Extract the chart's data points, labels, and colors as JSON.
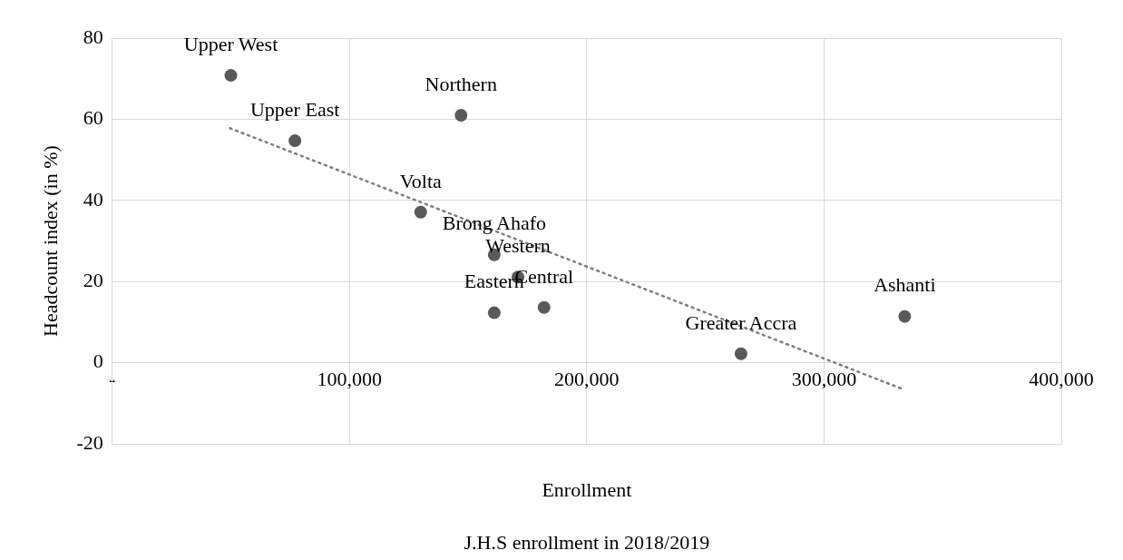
{
  "chart_data": {
    "type": "scatter",
    "xlabel": "Enrollment",
    "ylabel": "Headcount index (in %)",
    "xlim": [
      0,
      400000
    ],
    "ylim": [
      -20,
      80
    ],
    "xticks": [
      {
        "value": 0,
        "label": "-"
      },
      {
        "value": 100000,
        "label": "100,000"
      },
      {
        "value": 200000,
        "label": "200,000"
      },
      {
        "value": 300000,
        "label": "300,000"
      },
      {
        "value": 400000,
        "label": "400,000"
      }
    ],
    "yticks": [
      -20,
      0,
      20,
      40,
      60,
      80
    ],
    "grid": true,
    "marker": "circle",
    "series": [
      {
        "color": "#595959",
        "x": [
          50000,
          77000,
          147000,
          130000,
          161000,
          171000,
          161000,
          182000,
          265000,
          334000
        ],
        "values": [
          70.8,
          54.7,
          61.0,
          37.1,
          26.6,
          21.1,
          12.3,
          13.6,
          2.2,
          11.4
        ]
      },
      {
        "type": "line",
        "line_style": "dotted",
        "marker": "none",
        "color": "#7f7f7f",
        "x": [
          49600,
          333600
        ],
        "values": [
          57.8,
          -6.6
        ]
      }
    ],
    "annotations": [
      {
        "text": "Upper West",
        "x": 50000,
        "y": 70.8
      },
      {
        "text": "Upper East",
        "x": 77000,
        "y": 54.7
      },
      {
        "text": "Northern",
        "x": 147000,
        "y": 61.0
      },
      {
        "text": "Volta",
        "x": 130000,
        "y": 37.1
      },
      {
        "text": "Brong Ahafo",
        "x": 161000,
        "y": 26.6
      },
      {
        "text": "Western",
        "x": 171000,
        "y": 21.1
      },
      {
        "text": "Eastern",
        "x": 161000,
        "y": 12.3
      },
      {
        "text": "Central",
        "x": 182000,
        "y": 13.6
      },
      {
        "text": "Greater Accra",
        "x": 265000,
        "y": 2.2
      },
      {
        "text": "Ashanti",
        "x": 334000,
        "y": 11.4
      },
      "J.H.S enrollment in 2018/2019"
    ]
  }
}
